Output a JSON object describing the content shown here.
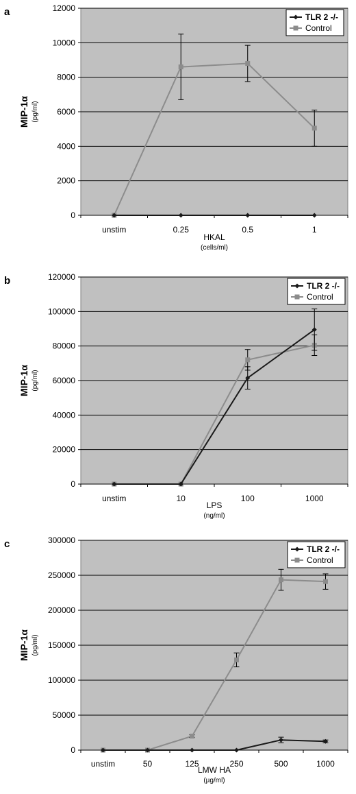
{
  "chart_data": [
    {
      "type": "line",
      "panel": "a",
      "categories": [
        "unstim",
        "0.25",
        "0.5",
        "1"
      ],
      "ylabel": "MIP-1α",
      "yunit": "(pg/ml)",
      "xlabel": "HKAL",
      "xunit": "(cells/ml)",
      "ylim": [
        0,
        12000
      ],
      "yticks": [
        0,
        2000,
        4000,
        6000,
        8000,
        10000,
        12000
      ],
      "legend_position": "top-right",
      "grid": true,
      "series": [
        {
          "name": "TLR 2 -/-",
          "color": "#1a1a1a",
          "marker": "diamond",
          "values": [
            0,
            0,
            0,
            0
          ],
          "errors": [
            0,
            0,
            0,
            0
          ]
        },
        {
          "name": "Control",
          "color": "#8c8c8c",
          "marker": "square",
          "values": [
            0,
            8600,
            8800,
            5050
          ],
          "errors": [
            0,
            1900,
            1050,
            1050
          ]
        }
      ]
    },
    {
      "type": "line",
      "panel": "b",
      "categories": [
        "unstim",
        "10",
        "100",
        "1000"
      ],
      "ylabel": "MIP-1α",
      "yunit": "(pg/ml)",
      "xlabel": "LPS",
      "xunit": "(ng/ml)",
      "ylim": [
        0,
        120000
      ],
      "yticks": [
        0,
        20000,
        40000,
        60000,
        80000,
        100000,
        120000
      ],
      "legend_position": "top-right",
      "grid": true,
      "series": [
        {
          "name": "TLR 2 -/-",
          "color": "#1a1a1a",
          "marker": "diamond",
          "values": [
            0,
            0,
            61500,
            89500
          ],
          "errors": [
            0,
            0,
            6500,
            12000
          ]
        },
        {
          "name": "Control",
          "color": "#8c8c8c",
          "marker": "square",
          "values": [
            0,
            0,
            72000,
            80500
          ],
          "errors": [
            0,
            0,
            6000,
            6000
          ]
        }
      ]
    },
    {
      "type": "line",
      "panel": "c",
      "categories": [
        "unstim",
        "50",
        "125",
        "250",
        "500",
        "1000"
      ],
      "ylabel": "MIP-1α",
      "yunit": "(pg/ml)",
      "xlabel": "LMW HA",
      "xunit": "(µg/ml)",
      "ylim": [
        0,
        300000
      ],
      "yticks": [
        0,
        50000,
        100000,
        150000,
        200000,
        250000,
        300000
      ],
      "legend_position": "top-right",
      "grid": true,
      "series": [
        {
          "name": "TLR 2 -/-",
          "color": "#1a1a1a",
          "marker": "diamond",
          "values": [
            0,
            0,
            0,
            0,
            14500,
            12500
          ],
          "errors": [
            0,
            0,
            0,
            0,
            4000,
            2000
          ]
        },
        {
          "name": "Control",
          "color": "#8c8c8c",
          "marker": "square",
          "values": [
            0,
            0,
            20000,
            129000,
            243500,
            241000
          ],
          "errors": [
            0,
            0,
            2000,
            10000,
            15000,
            11000
          ]
        }
      ]
    }
  ]
}
